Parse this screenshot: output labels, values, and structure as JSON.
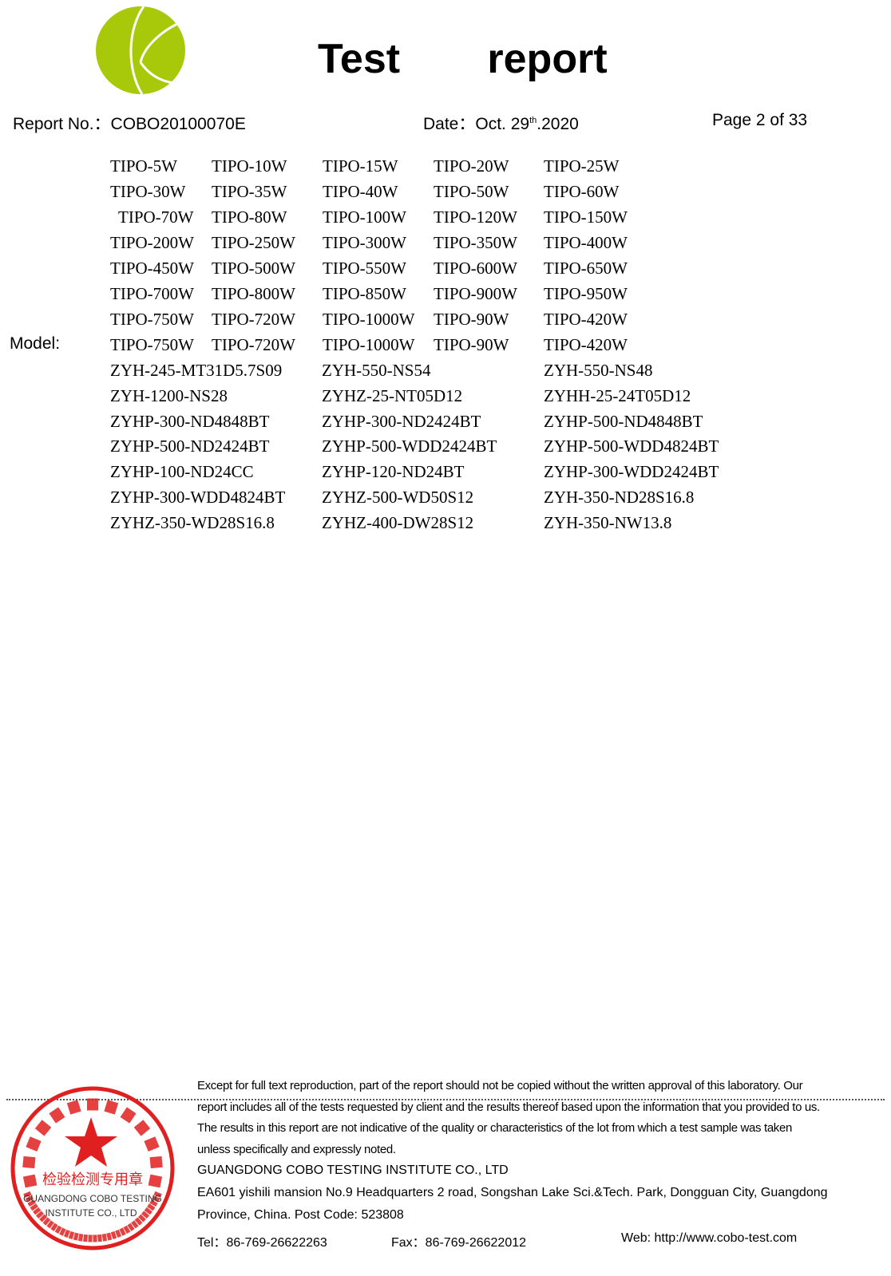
{
  "header": {
    "logo": "cobo-logo",
    "title": "Test   report",
    "report_no": "Report No.：COBO20100070E",
    "date_prefix": "Date：Oct. 29",
    "date_sup": "th",
    "date_suffix": ".2020",
    "page": "Page 2 of 33"
  },
  "model": {
    "label": "Model:",
    "tipo_rows": [
      [
        "TIPO-5W",
        "TIPO-10W",
        "TIPO-15W",
        "TIPO-20W",
        "TIPO-25W"
      ],
      [
        "TIPO-30W",
        "TIPO-35W",
        "TIPO-40W",
        "TIPO-50W",
        "TIPO-60W"
      ],
      [
        "TIPO-70W",
        "TIPO-80W",
        "TIPO-100W",
        "TIPO-120W",
        "TIPO-150W"
      ],
      [
        "TIPO-200W",
        "TIPO-250W",
        "TIPO-300W",
        "TIPO-350W",
        "TIPO-400W"
      ],
      [
        "TIPO-450W",
        "TIPO-500W",
        "TIPO-550W",
        "TIPO-600W",
        "TIPO-650W"
      ],
      [
        "TIPO-700W",
        "TIPO-800W",
        "TIPO-850W",
        "TIPO-900W",
        "TIPO-950W"
      ],
      [
        "TIPO-750W",
        "TIPO-720W",
        "TIPO-1000W",
        "TIPO-90W",
        "TIPO-420W"
      ],
      [
        "TIPO-750W",
        "TIPO-720W",
        "TIPO-1000W",
        "TIPO-90W",
        "TIPO-420W"
      ]
    ],
    "zyh_rows": [
      [
        "ZYH-245-MT31D5.7S09",
        "ZYH-550-NS54",
        "ZYH-550-NS48"
      ],
      [
        "ZYH-1200-NS28",
        "ZYHZ-25-NT05D12",
        "ZYHH-25-24T05D12"
      ],
      [
        "ZYHP-300-ND4848BT",
        "ZYHP-300-ND2424BT",
        "ZYHP-500-ND4848BT"
      ],
      [
        "ZYHP-500-ND2424BT",
        "ZYHP-500-WDD2424BT",
        "ZYHP-500-WDD4824BT"
      ],
      [
        "ZYHP-100-ND24CC",
        "ZYHP-120-ND24BT",
        "ZYHP-300-WDD2424BT"
      ],
      [
        "ZYHP-300-WDD4824BT",
        "ZYHZ-500-WD50S12",
        "ZYH-350-ND28S16.8"
      ],
      [
        "ZYHZ-350-WD28S16.8",
        "ZYHZ-400-DW28S12",
        "ZYH-350-NW13.8"
      ]
    ]
  },
  "footer": {
    "stamp": {
      "ring_cn": "广东科博检测研究院有限公司",
      "center_cn": "检验检测专用章",
      "line1": "GUANGDONG COBO TESTING",
      "line2": "INSTITUTE CO., LTD",
      "ring_en": "GUANGDONG COBO TESTING INSTITUTE CO.,LTD",
      "color": "#e02020"
    },
    "disclaimer": [
      "Except for full text reproduction, part of the report should not be copied without the written approval of this laboratory. Our",
      "report includes all of the tests requested by client and the results thereof based upon the information that you provided to us.",
      "The results in this report are not indicative of the quality or characteristics of the lot from which a test sample was taken",
      "unless specifically and expressly noted."
    ],
    "company": "GUANGDONG COBO TESTING INSTITUTE CO., LTD",
    "address1": "EA601 yishili mansion No.9 Headquarters 2 road, Songshan Lake Sci.&Tech. Park, Dongguan City, Guangdong",
    "address2": "Province, China. Post Code: 523808",
    "tel": "Tel：86-769-26622263",
    "fax": "Fax：86-769-26622012",
    "web": "Web: http://www.cobo-test.com"
  },
  "colors": {
    "logo_green": "#a8c80a",
    "stamp_red": "#e02020"
  }
}
